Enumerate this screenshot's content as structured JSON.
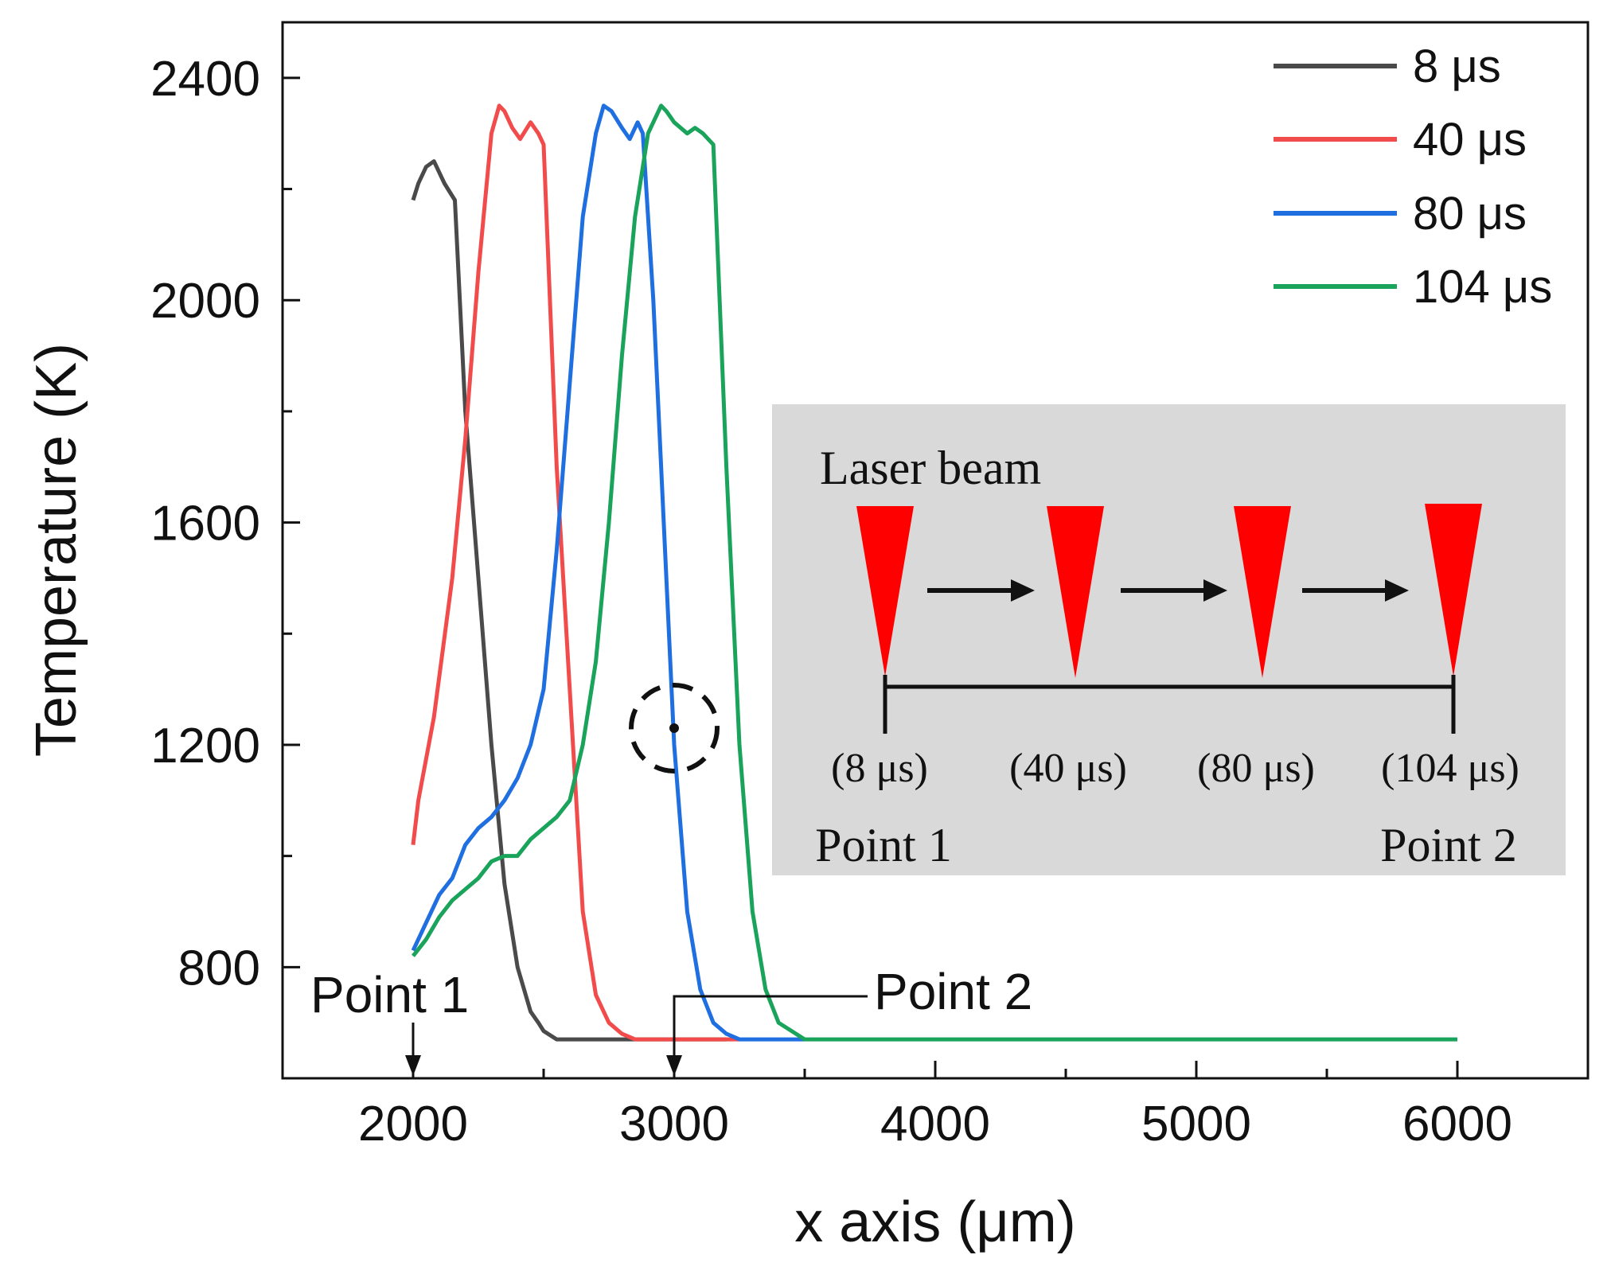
{
  "chart_data": {
    "type": "line",
    "xlabel": "x axis (μm)",
    "ylabel": "Temperature (K)",
    "xlim": [
      1500,
      6500
    ],
    "ylim": [
      600,
      2500
    ],
    "xticks": [
      2000,
      3000,
      4000,
      5000,
      6000
    ],
    "xminor": [
      2500,
      3500,
      4500,
      5500
    ],
    "yticks": [
      800,
      1200,
      1600,
      2000,
      2400
    ],
    "yminor": [
      1000,
      1400,
      1800,
      2200
    ],
    "legend_position": "top-right",
    "series": [
      {
        "name": "8 μs",
        "color": "#4a4a4a",
        "x": [
          2000,
          2020,
          2050,
          2080,
          2100,
          2120,
          2140,
          2160,
          2200,
          2250,
          2300,
          2350,
          2400,
          2450,
          2480,
          2500,
          2550,
          2600,
          2700,
          2800,
          2900,
          3000,
          3200
        ],
        "y": [
          2180,
          2210,
          2240,
          2250,
          2230,
          2210,
          2195,
          2180,
          1800,
          1500,
          1200,
          950,
          800,
          720,
          700,
          685,
          670,
          670,
          670,
          670,
          670,
          670,
          670
        ]
      },
      {
        "name": "40 μs",
        "color": "#f24b4b",
        "x": [
          2000,
          2020,
          2080,
          2150,
          2200,
          2250,
          2300,
          2330,
          2350,
          2380,
          2410,
          2450,
          2480,
          2500,
          2550,
          2600,
          2650,
          2700,
          2750,
          2800,
          2850,
          3000,
          3250
        ],
        "y": [
          1020,
          1100,
          1250,
          1500,
          1750,
          2050,
          2300,
          2350,
          2340,
          2310,
          2290,
          2320,
          2300,
          2280,
          1700,
          1300,
          900,
          750,
          700,
          680,
          670,
          670,
          670
        ]
      },
      {
        "name": "80 μs",
        "color": "#1f6fe0",
        "x": [
          2000,
          2050,
          2100,
          2150,
          2200,
          2250,
          2300,
          2350,
          2400,
          2450,
          2500,
          2550,
          2600,
          2650,
          2700,
          2730,
          2760,
          2800,
          2830,
          2860,
          2880,
          2920,
          2960,
          3000,
          3050,
          3100,
          3150,
          3200,
          3250,
          3300,
          3400,
          3500
        ],
        "y": [
          830,
          880,
          930,
          960,
          1020,
          1050,
          1070,
          1100,
          1140,
          1200,
          1300,
          1550,
          1850,
          2150,
          2300,
          2350,
          2340,
          2310,
          2290,
          2320,
          2300,
          2000,
          1600,
          1200,
          900,
          760,
          700,
          680,
          670,
          670,
          670,
          670
        ]
      },
      {
        "name": "104 μs",
        "color": "#1aa35a",
        "x": [
          2000,
          2050,
          2100,
          2150,
          2200,
          2250,
          2300,
          2350,
          2400,
          2450,
          2500,
          2550,
          2600,
          2650,
          2700,
          2750,
          2800,
          2850,
          2900,
          2950,
          2970,
          3000,
          3050,
          3080,
          3110,
          3150,
          3200,
          3250,
          3300,
          3350,
          3400,
          3500,
          4000,
          5000,
          6000
        ],
        "y": [
          820,
          850,
          890,
          920,
          940,
          960,
          990,
          1000,
          1000,
          1030,
          1050,
          1070,
          1100,
          1200,
          1350,
          1600,
          1900,
          2150,
          2300,
          2350,
          2340,
          2320,
          2300,
          2310,
          2300,
          2280,
          1700,
          1200,
          900,
          760,
          700,
          670,
          670,
          670,
          670
        ]
      }
    ],
    "annotations": {
      "point1": {
        "label": "Point 1",
        "x": 2000
      },
      "point2": {
        "label": "Point 2",
        "x": 3000
      },
      "circle_marker": {
        "x": 3000,
        "y": 1230
      }
    },
    "inset": {
      "title": "Laser beam",
      "times": [
        "(8 μs)",
        "(40 μs)",
        "(80 μs)",
        "(104 μs)"
      ],
      "start_label": "Point 1",
      "end_label": "Point 2",
      "background": "#d9d9d9",
      "beam_color": "#ff0000"
    }
  }
}
